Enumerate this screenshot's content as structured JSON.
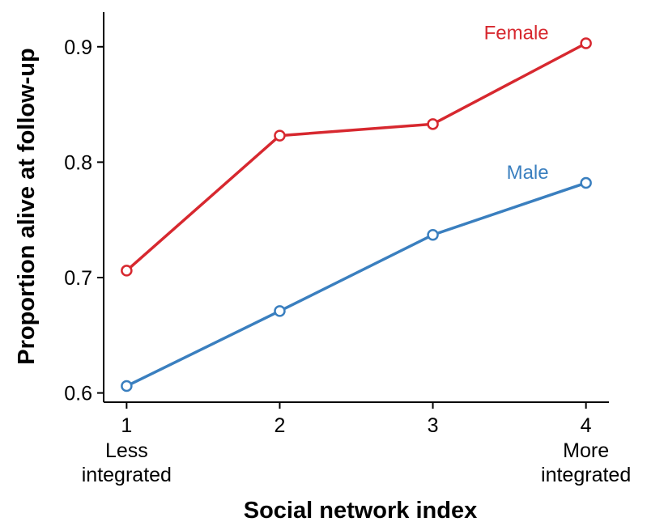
{
  "chart_data": {
    "type": "line",
    "xlabel": "Social network index",
    "ylabel": "Proportion alive at follow-up",
    "x": [
      1,
      2,
      3,
      4
    ],
    "series": [
      {
        "name": "Female",
        "color": "#d7282f",
        "values": [
          0.706,
          0.823,
          0.833,
          0.903
        ]
      },
      {
        "name": "Male",
        "color": "#3a7fbf",
        "values": [
          0.606,
          0.671,
          0.737,
          0.782
        ]
      }
    ],
    "xlim": [
      0.85,
      4.15
    ],
    "xticks": [
      1,
      2,
      3,
      4
    ],
    "ylim": [
      0.592,
      0.93
    ],
    "yticks": [
      0.6,
      0.7,
      0.8,
      0.9
    ],
    "annotations": [
      {
        "x": 1,
        "lines": [
          "Less",
          "integrated"
        ]
      },
      {
        "x": 4,
        "lines": [
          "More",
          "integrated"
        ]
      }
    ],
    "grid": false
  }
}
